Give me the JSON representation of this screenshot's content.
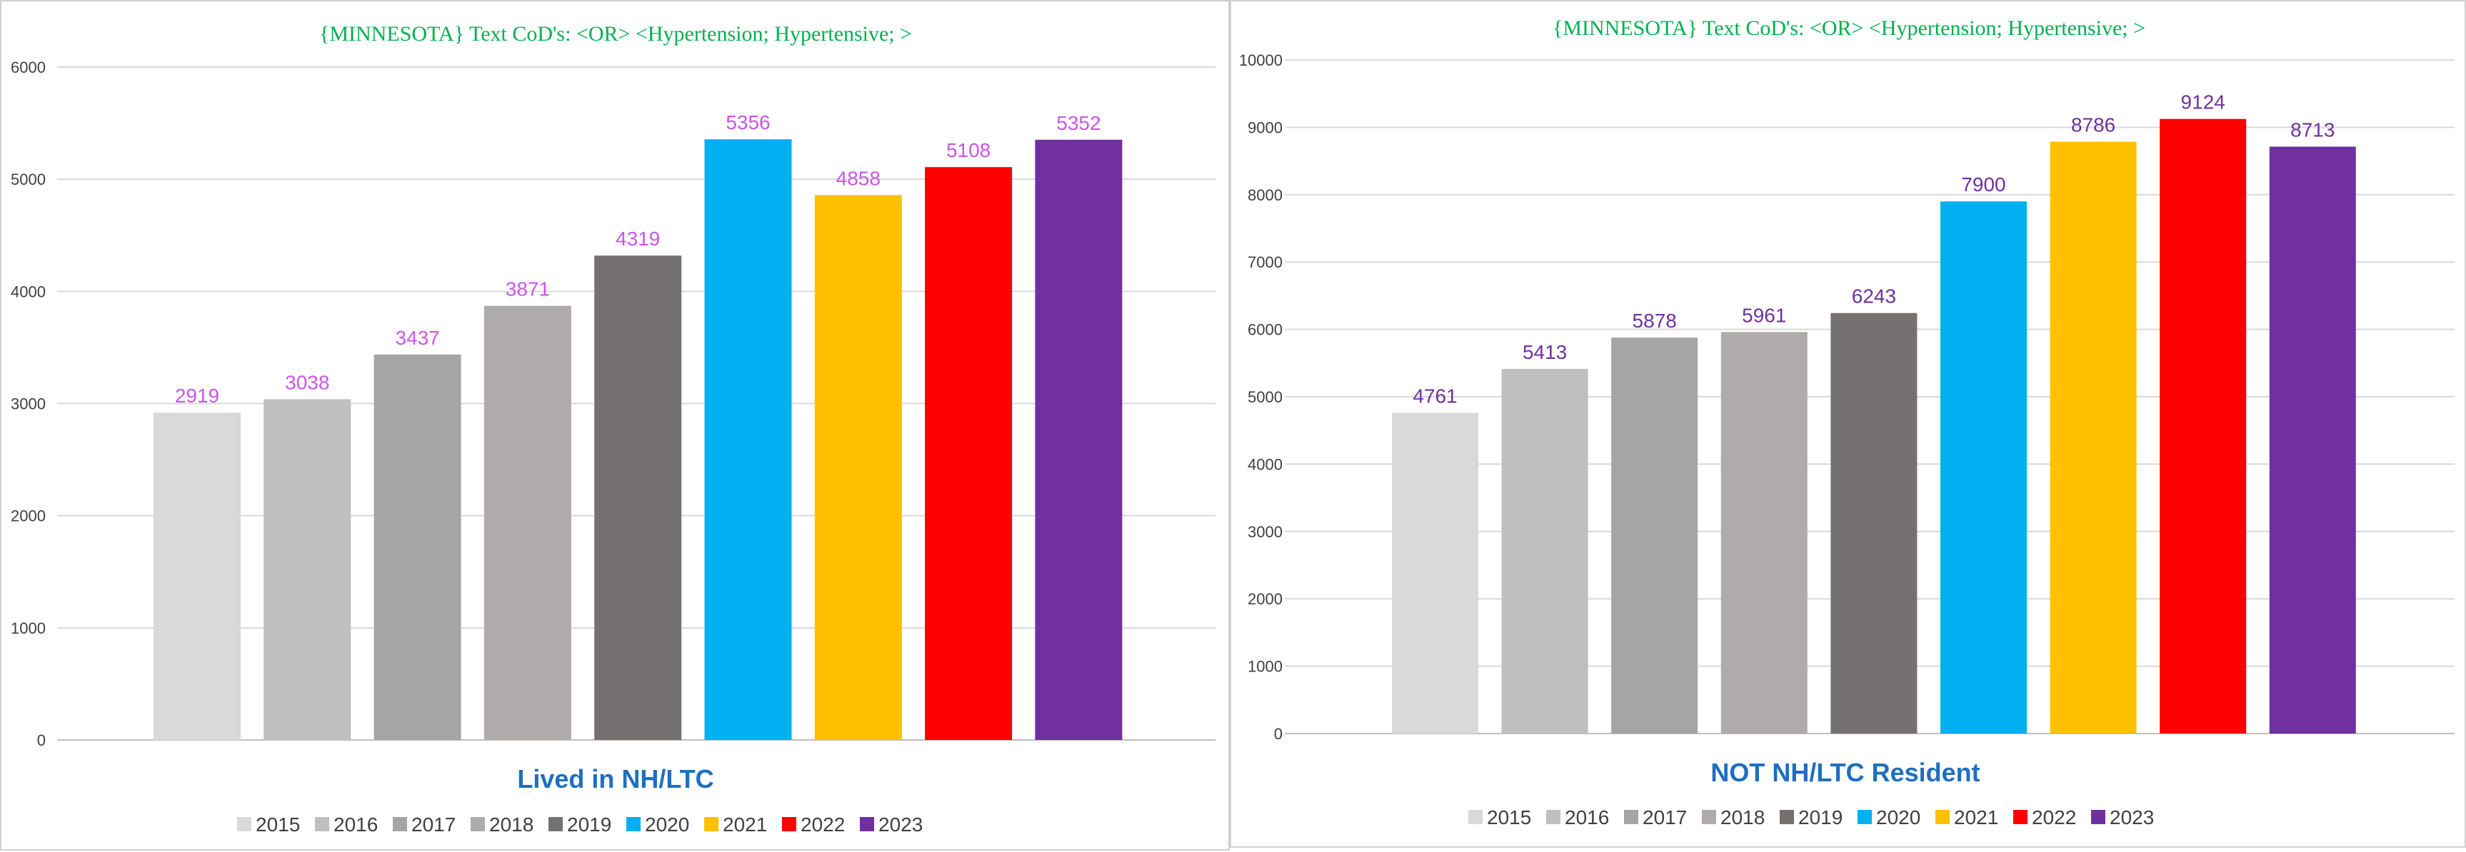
{
  "chart_data": [
    {
      "type": "bar",
      "title": "{MINNESOTA}   Text CoD's: <OR> <Hypertension;  Hypertensive; >",
      "xlabel": "Lived in NH/LTC",
      "ylabel": "",
      "categories": [
        "2015",
        "2016",
        "2017",
        "2018",
        "2019",
        "2020",
        "2021",
        "2022",
        "2023"
      ],
      "values": [
        2919,
        3038,
        3437,
        3871,
        4319,
        5356,
        4858,
        5108,
        5352
      ],
      "colors": [
        "#d9d9d9",
        "#bfbfbf",
        "#a5a5a5",
        "#afabab",
        "#767171",
        "#00b0f0",
        "#ffc000",
        "#ff0000",
        "#7030a0"
      ],
      "ylim": [
        0,
        6000
      ],
      "yticks": [
        "0",
        "1000",
        "2000",
        "3000",
        "4000",
        "5000",
        "6000"
      ],
      "grid": true,
      "legend": "bottom",
      "title_color": "#00b050",
      "label_color": "#cc55ee",
      "xlabel_color": "#1f6fc0"
    },
    {
      "type": "bar",
      "title": "{MINNESOTA}   Text CoD's: <OR> <Hypertension;  Hypertensive; >",
      "xlabel": "NOT NH/LTC Resident",
      "ylabel": "",
      "categories": [
        "2015",
        "2016",
        "2017",
        "2018",
        "2019",
        "2020",
        "2021",
        "2022",
        "2023"
      ],
      "values": [
        4761,
        5413,
        5878,
        5961,
        6243,
        7900,
        8786,
        9124,
        8713
      ],
      "colors": [
        "#d9d9d9",
        "#bfbfbf",
        "#a5a5a5",
        "#afabab",
        "#767171",
        "#00b0f0",
        "#ffc000",
        "#ff0000",
        "#7030a0"
      ],
      "ylim": [
        0,
        10000
      ],
      "yticks": [
        "0",
        "1000",
        "2000",
        "3000",
        "4000",
        "5000",
        "6000",
        "7000",
        "8000",
        "9000",
        "10000"
      ],
      "grid": true,
      "legend": "bottom",
      "title_color": "#00b050",
      "label_color": "#7030a0",
      "xlabel_color": "#1f6fc0"
    }
  ]
}
